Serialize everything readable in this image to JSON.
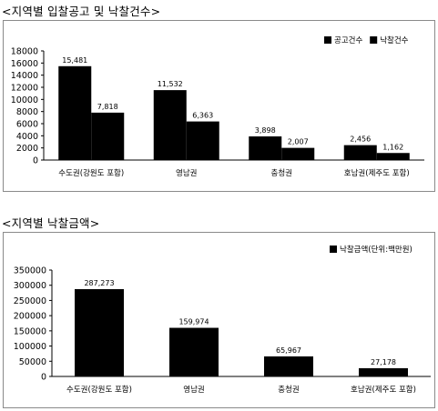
{
  "colors": {
    "bar": "#000000",
    "axis": "#000000",
    "frame": "#8a8a8a"
  },
  "chart_data": [
    {
      "type": "bar",
      "title": "<지역별 입찰공고 및 낙찰건수>",
      "categories": [
        "수도권(강원도 포함)",
        "영남권",
        "충청권",
        "호남권(제주도 포함)"
      ],
      "series": [
        {
          "name": "공고건수",
          "values": [
            15481,
            11532,
            3898,
            2456
          ],
          "labels": [
            "15,481",
            "11,532",
            "3,898",
            "2,456"
          ]
        },
        {
          "name": "낙찰건수",
          "values": [
            7818,
            6363,
            2007,
            1162
          ],
          "labels": [
            "7,818",
            "6,363",
            "2,007",
            "1,162"
          ]
        }
      ],
      "ylim": [
        0,
        18000
      ],
      "yticks": [
        "0",
        "2000",
        "4000",
        "6000",
        "8000",
        "10000",
        "12000",
        "14000",
        "16000",
        "18000"
      ],
      "legend_position": "top-right",
      "grid": false
    },
    {
      "type": "bar",
      "title": "<지역별 낙찰금액>",
      "categories": [
        "수도권(강원도 포함)",
        "영남권",
        "충청권",
        "호남권(제주도 포함)"
      ],
      "series": [
        {
          "name": "낙찰금액(단위:백만원)",
          "values": [
            287273,
            159974,
            65967,
            27178
          ],
          "labels": [
            "287,273",
            "159,974",
            "65,967",
            "27,178"
          ]
        }
      ],
      "ylim": [
        0,
        350000
      ],
      "yticks": [
        "0",
        "50000",
        "100000",
        "150000",
        "200000",
        "250000",
        "300000",
        "350000"
      ],
      "legend_position": "top-right",
      "grid": false
    }
  ]
}
